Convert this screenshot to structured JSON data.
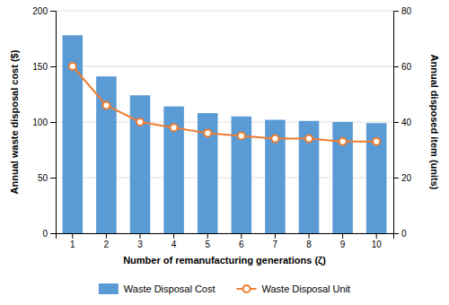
{
  "chart_data": {
    "type": "bar",
    "xlabel": "Number of remanufacturing generations (ζ)",
    "ylabel": "Annual waste disposal cost ($)",
    "y2label": "Annual disposed item (units)",
    "categories": [
      1,
      2,
      3,
      4,
      5,
      6,
      7,
      8,
      9,
      10
    ],
    "series": [
      {
        "name": "Waste Disposal Cost",
        "type": "bar",
        "color": "#5b9bd5",
        "values": [
          178,
          141,
          124,
          114,
          108,
          105,
          102,
          101,
          100,
          99
        ]
      },
      {
        "name": "Waste Disposal Unit",
        "type": "line",
        "axis": "y2",
        "color": "#ed7d31",
        "marker": "circle",
        "values": [
          60,
          46,
          40,
          38,
          36,
          35,
          34,
          34,
          33,
          33
        ]
      }
    ],
    "ylim": [
      0,
      200
    ],
    "yticks": [
      0,
      50,
      100,
      150,
      200
    ],
    "y2lim": [
      0,
      80
    ],
    "y2ticks": [
      0,
      20,
      40,
      60,
      80
    ],
    "grid": true,
    "legend": "bottom"
  }
}
